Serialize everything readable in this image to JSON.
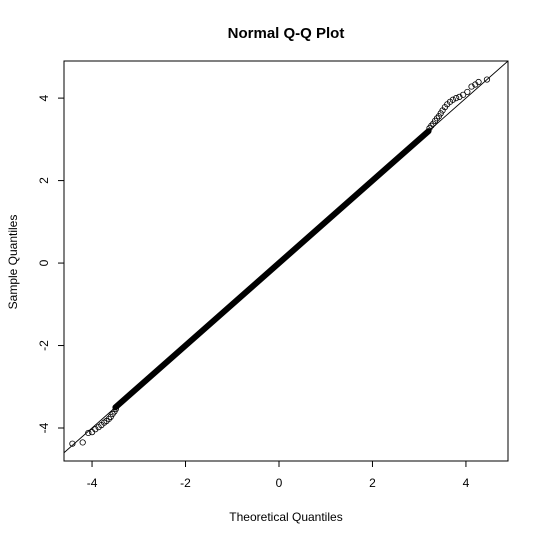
{
  "chart_data": {
    "type": "scatter",
    "title": "Normal Q-Q Plot",
    "xlabel": "Theoretical Quantiles",
    "ylabel": "Sample Quantiles",
    "xlim": [
      -4.6,
      4.9
    ],
    "ylim": [
      -4.8,
      4.9
    ],
    "xticks": [
      -4,
      -2,
      0,
      2,
      4
    ],
    "yticks": [
      -4,
      -2,
      0,
      2,
      4
    ],
    "xtick_labels": [
      "-4",
      "-2",
      "0",
      "2",
      "4"
    ],
    "ytick_labels": [
      "-4",
      "-2",
      "0",
      "2",
      "4"
    ],
    "grid": false,
    "reference_line": {
      "intercept": 0,
      "slope": 1
    },
    "dense_range": [
      -3.5,
      3.2
    ],
    "points": [
      [
        -4.42,
        -4.38
      ],
      [
        -4.2,
        -4.35
      ],
      [
        -4.08,
        -4.12
      ],
      [
        -4.0,
        -4.1
      ],
      [
        -3.93,
        -4.03
      ],
      [
        -3.86,
        -3.98
      ],
      [
        -3.8,
        -3.93
      ],
      [
        -3.74,
        -3.87
      ],
      [
        -3.69,
        -3.83
      ],
      [
        -3.64,
        -3.78
      ],
      [
        -3.6,
        -3.73
      ],
      [
        -3.56,
        -3.66
      ],
      [
        -3.52,
        -3.6
      ],
      [
        -3.49,
        -3.54
      ],
      [
        3.22,
        3.27
      ],
      [
        3.26,
        3.33
      ],
      [
        3.3,
        3.38
      ],
      [
        3.34,
        3.45
      ],
      [
        3.38,
        3.51
      ],
      [
        3.42,
        3.56
      ],
      [
        3.46,
        3.63
      ],
      [
        3.5,
        3.7
      ],
      [
        3.55,
        3.78
      ],
      [
        3.6,
        3.85
      ],
      [
        3.66,
        3.91
      ],
      [
        3.72,
        3.96
      ],
      [
        3.79,
        4.0
      ],
      [
        3.86,
        4.03
      ],
      [
        3.94,
        4.08
      ],
      [
        4.03,
        4.15
      ],
      [
        4.12,
        4.28
      ],
      [
        4.2,
        4.33
      ],
      [
        4.27,
        4.39
      ],
      [
        4.45,
        4.45
      ]
    ]
  }
}
